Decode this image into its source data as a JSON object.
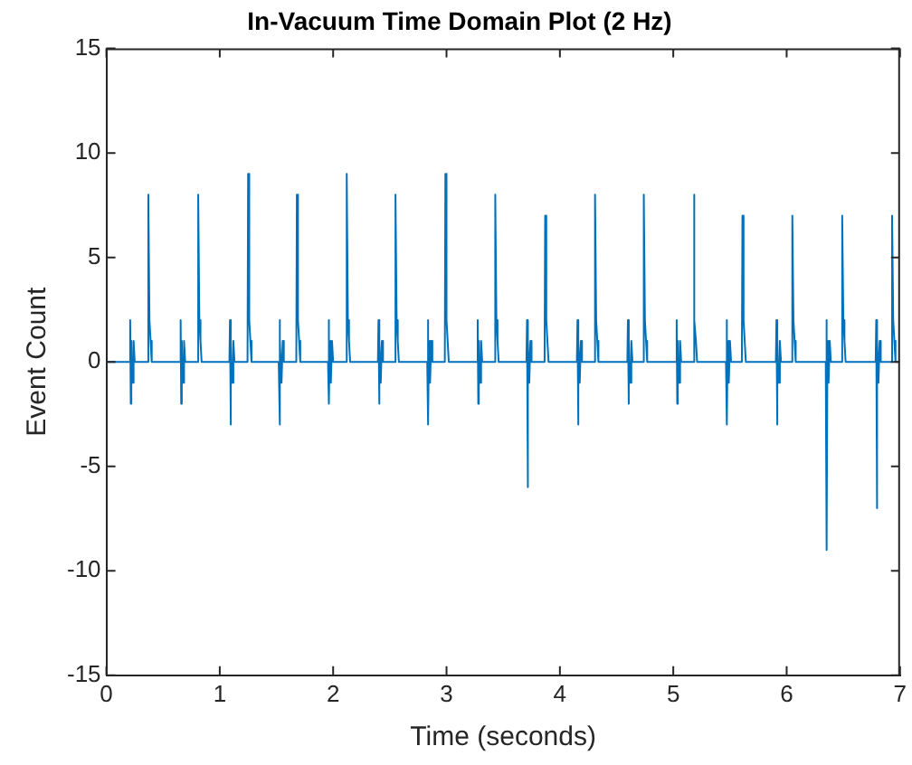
{
  "chart_data": {
    "type": "line",
    "title": "In-Vacuum Time Domain Plot (2 Hz)",
    "xlabel": "Time (seconds)",
    "ylabel": "Event Count",
    "xlim": [
      0,
      7
    ],
    "xticks": [
      0,
      1,
      2,
      3,
      4,
      5,
      6,
      7
    ],
    "ylim": [
      -15,
      15
    ],
    "yticks": [
      -15,
      -10,
      -5,
      0,
      5,
      10,
      15
    ],
    "grid": false,
    "legend": false,
    "marker": "none",
    "line_style": "solid",
    "series": [
      {
        "color": "#0072bd",
        "x": [
          0,
          0.205,
          0.21,
          0.215,
          0.22,
          0.23,
          0.24,
          0.25,
          0.365,
          0.37,
          0.38,
          0.39,
          0.4,
          0.65,
          0.655,
          0.66,
          0.665,
          0.675,
          0.685,
          0.695,
          0.805,
          0.81,
          0.82,
          0.83,
          0.84,
          1.085,
          1.09,
          1.095,
          1.1,
          1.11,
          1.12,
          1.13,
          1.245,
          1.25,
          1.26,
          1.27,
          1.28,
          1.52,
          1.525,
          1.53,
          1.535,
          1.545,
          1.555,
          1.565,
          1.675,
          1.68,
          1.69,
          1.7,
          1.71,
          1.955,
          1.96,
          1.965,
          1.97,
          1.98,
          1.99,
          2.0,
          2.115,
          2.12,
          2.13,
          2.14,
          2.15,
          2.395,
          2.4,
          2.405,
          2.41,
          2.42,
          2.43,
          2.44,
          2.545,
          2.55,
          2.56,
          2.57,
          2.58,
          2.83,
          2.835,
          2.84,
          2.845,
          2.855,
          2.865,
          2.875,
          2.985,
          2.99,
          3.0,
          3.01,
          3.02,
          3.27,
          3.275,
          3.28,
          3.285,
          3.295,
          3.305,
          3.315,
          3.425,
          3.43,
          3.44,
          3.45,
          3.46,
          3.705,
          3.71,
          3.715,
          3.72,
          3.73,
          3.74,
          3.75,
          3.865,
          3.87,
          3.88,
          3.89,
          3.9,
          4.15,
          4.155,
          4.16,
          4.165,
          4.175,
          4.185,
          4.195,
          4.305,
          4.31,
          4.32,
          4.33,
          4.34,
          4.595,
          4.6,
          4.605,
          4.61,
          4.62,
          4.63,
          4.64,
          4.735,
          4.74,
          4.75,
          4.76,
          4.77,
          5.025,
          5.03,
          5.035,
          5.04,
          5.05,
          5.06,
          5.07,
          5.175,
          5.18,
          5.19,
          5.2,
          5.21,
          5.465,
          5.47,
          5.475,
          5.48,
          5.49,
          5.5,
          5.51,
          5.605,
          5.61,
          5.62,
          5.63,
          5.64,
          5.905,
          5.91,
          5.915,
          5.92,
          5.93,
          5.94,
          5.95,
          6.045,
          6.05,
          6.06,
          6.07,
          6.08,
          6.345,
          6.35,
          6.355,
          6.36,
          6.37,
          6.38,
          6.39,
          6.485,
          6.49,
          6.5,
          6.51,
          6.52,
          6.785,
          6.79,
          6.795,
          6.8,
          6.81,
          6.82,
          6.83,
          6.925,
          6.93,
          6.94,
          6.95,
          6.96,
          7
        ],
        "values": [
          0,
          0,
          2,
          -2,
          1,
          -1,
          1,
          0,
          0,
          8,
          2,
          1,
          0,
          0,
          2,
          -2,
          1,
          -1,
          1,
          0,
          0,
          8,
          2,
          1,
          0,
          0,
          2,
          -3,
          1,
          -1,
          1,
          0,
          0,
          9,
          2,
          1,
          0,
          0,
          2,
          -3,
          1,
          -1,
          1,
          0,
          0,
          8,
          2,
          1,
          0,
          0,
          2,
          -2,
          1,
          -1,
          1,
          0,
          0,
          9,
          2,
          1,
          0,
          0,
          2,
          -2,
          1,
          -1,
          1,
          0,
          0,
          8,
          2,
          1,
          0,
          0,
          2,
          -3,
          1,
          -1,
          1,
          0,
          0,
          9,
          2,
          1,
          0,
          0,
          2,
          -2,
          1,
          -1,
          1,
          0,
          0,
          8,
          2,
          1,
          0,
          0,
          2,
          -6,
          1,
          -1,
          1,
          0,
          0,
          7,
          2,
          1,
          0,
          0,
          2,
          -3,
          1,
          -1,
          1,
          0,
          0,
          8,
          2,
          1,
          0,
          0,
          2,
          -2,
          1,
          -1,
          1,
          0,
          0,
          8,
          2,
          1,
          0,
          0,
          2,
          -2,
          1,
          -1,
          1,
          0,
          0,
          8,
          2,
          1,
          0,
          0,
          2,
          -3,
          1,
          -1,
          1,
          0,
          0,
          7,
          2,
          1,
          0,
          0,
          2,
          -3,
          1,
          -1,
          1,
          0,
          0,
          7,
          2,
          1,
          0,
          0,
          2,
          -9,
          1,
          -1,
          1,
          0,
          0,
          7,
          2,
          1,
          0,
          0,
          2,
          -7,
          1,
          -1,
          1,
          0,
          0,
          7,
          2,
          1,
          0,
          0
        ]
      }
    ]
  }
}
